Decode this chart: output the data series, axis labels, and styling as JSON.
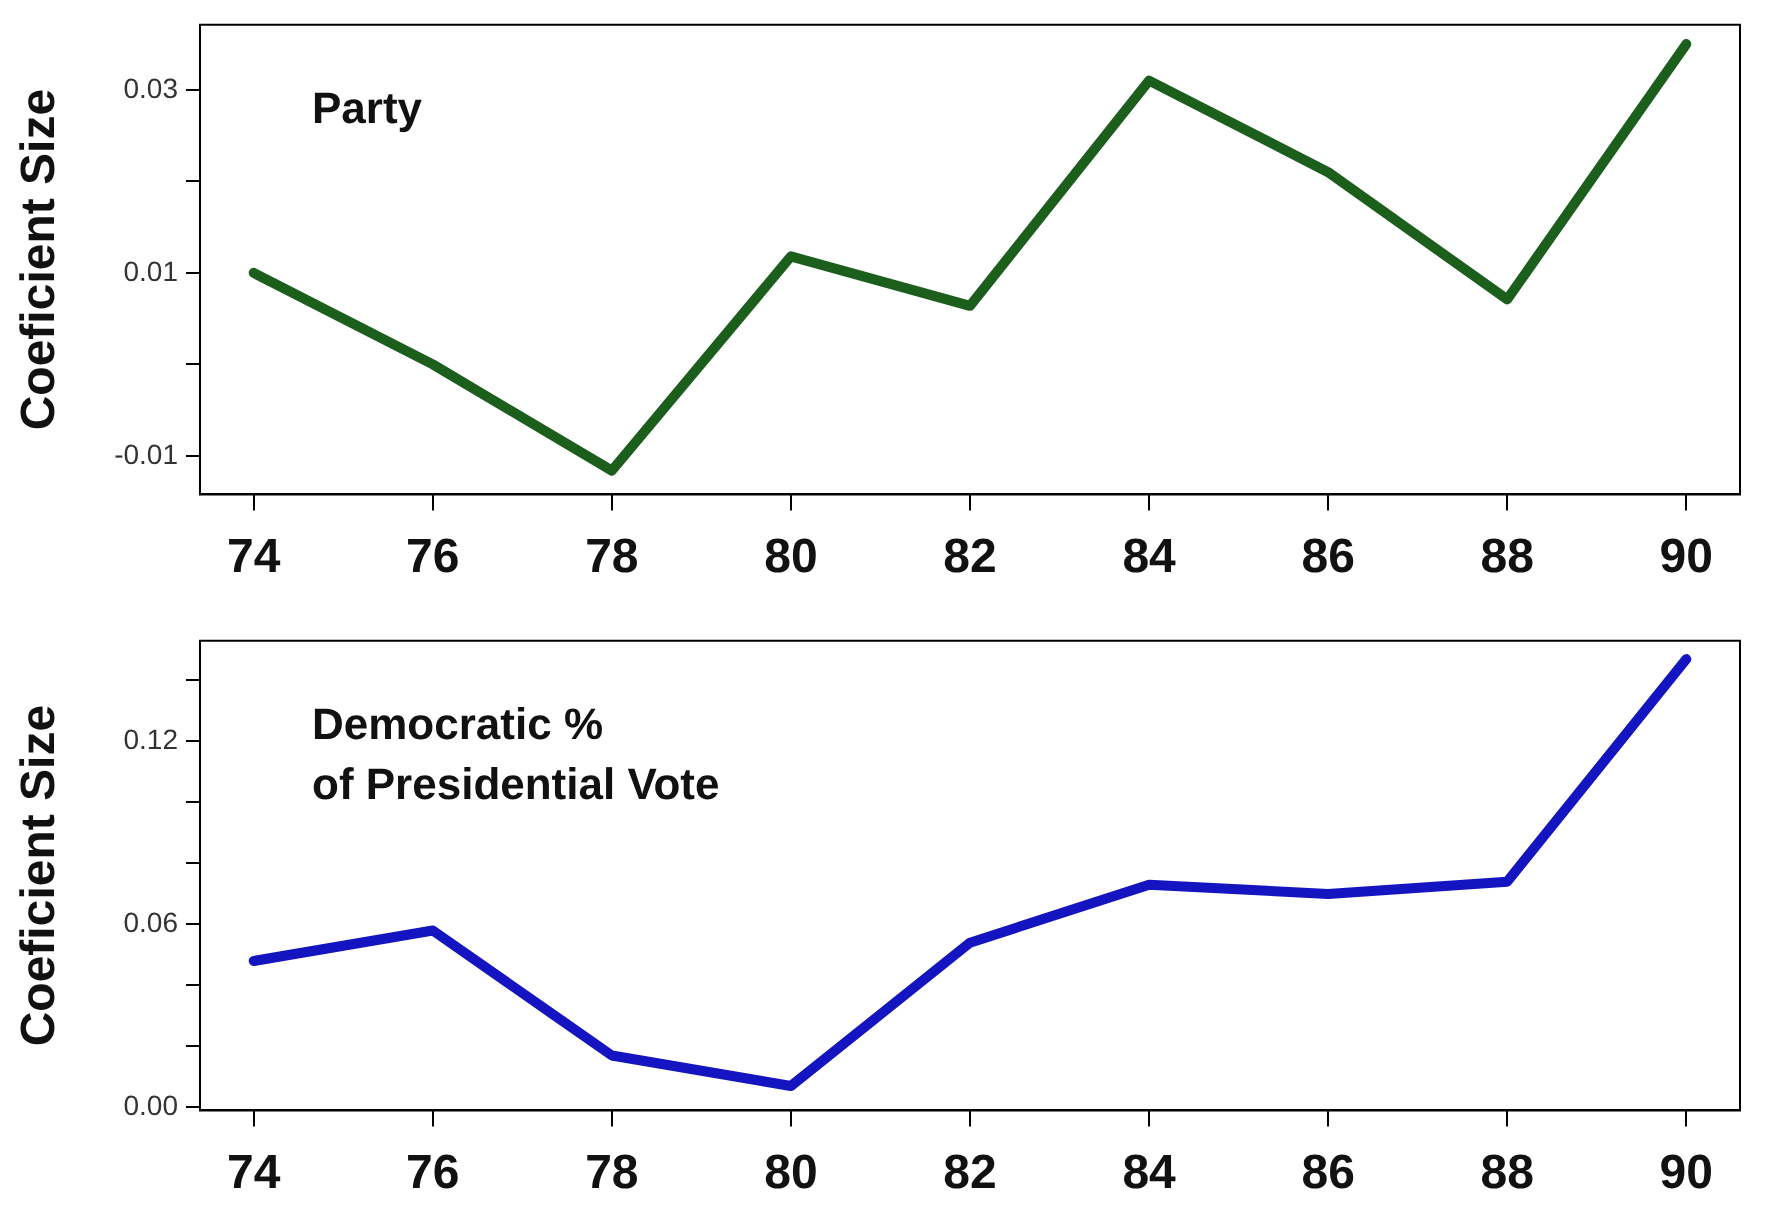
{
  "chart_data": [
    {
      "type": "line",
      "ylabel": "Coeficient Size",
      "annotations": [
        "Party"
      ],
      "x": [
        74,
        76,
        78,
        80,
        82,
        84,
        86,
        88,
        90
      ],
      "series": [
        {
          "color": "#1c5e1c",
          "values": [
            0.01,
            0.0,
            -0.0116,
            0.0118,
            0.0064,
            0.031,
            0.021,
            0.0071,
            0.035
          ]
        }
      ],
      "xlim": [
        73.4,
        90.6
      ],
      "xticks": [
        74,
        76,
        78,
        80,
        82,
        84,
        86,
        88,
        90
      ],
      "ylim": [
        -0.0142,
        0.0371
      ],
      "yticks": [
        -0.01,
        {
          "value": 0,
          "label": null
        },
        0.01,
        {
          "value": 0.02,
          "label": null
        },
        0.03
      ],
      "legend": false,
      "marker": "none",
      "line_style": "solid"
    },
    {
      "type": "line",
      "ylabel": "Coeficient Size",
      "annotations": [
        "Democratic %\nof Presidential Vote"
      ],
      "x": [
        74,
        76,
        78,
        80,
        82,
        84,
        86,
        88,
        90
      ],
      "series": [
        {
          "color": "#1414c0",
          "values": [
            0.048,
            0.058,
            0.017,
            0.007,
            0.054,
            0.073,
            0.07,
            0.074,
            0.147
          ]
        }
      ],
      "xlim": [
        73.4,
        90.6
      ],
      "xticks": [
        74,
        76,
        78,
        80,
        82,
        84,
        86,
        88,
        90
      ],
      "ylim": [
        -0.001,
        0.153
      ],
      "yticks": [
        {
          "value": 0,
          "label": "0.00"
        },
        {
          "value": 0.02,
          "label": null
        },
        {
          "value": 0.04,
          "label": null
        },
        {
          "value": 0.06,
          "label": "0.06"
        },
        {
          "value": 0.08,
          "label": null
        },
        {
          "value": 0.1,
          "label": null
        },
        {
          "value": 0.12,
          "label": "0.12"
        },
        {
          "value": 0.14,
          "label": null
        }
      ],
      "legend": false,
      "marker": "none",
      "line_style": "solid"
    }
  ]
}
